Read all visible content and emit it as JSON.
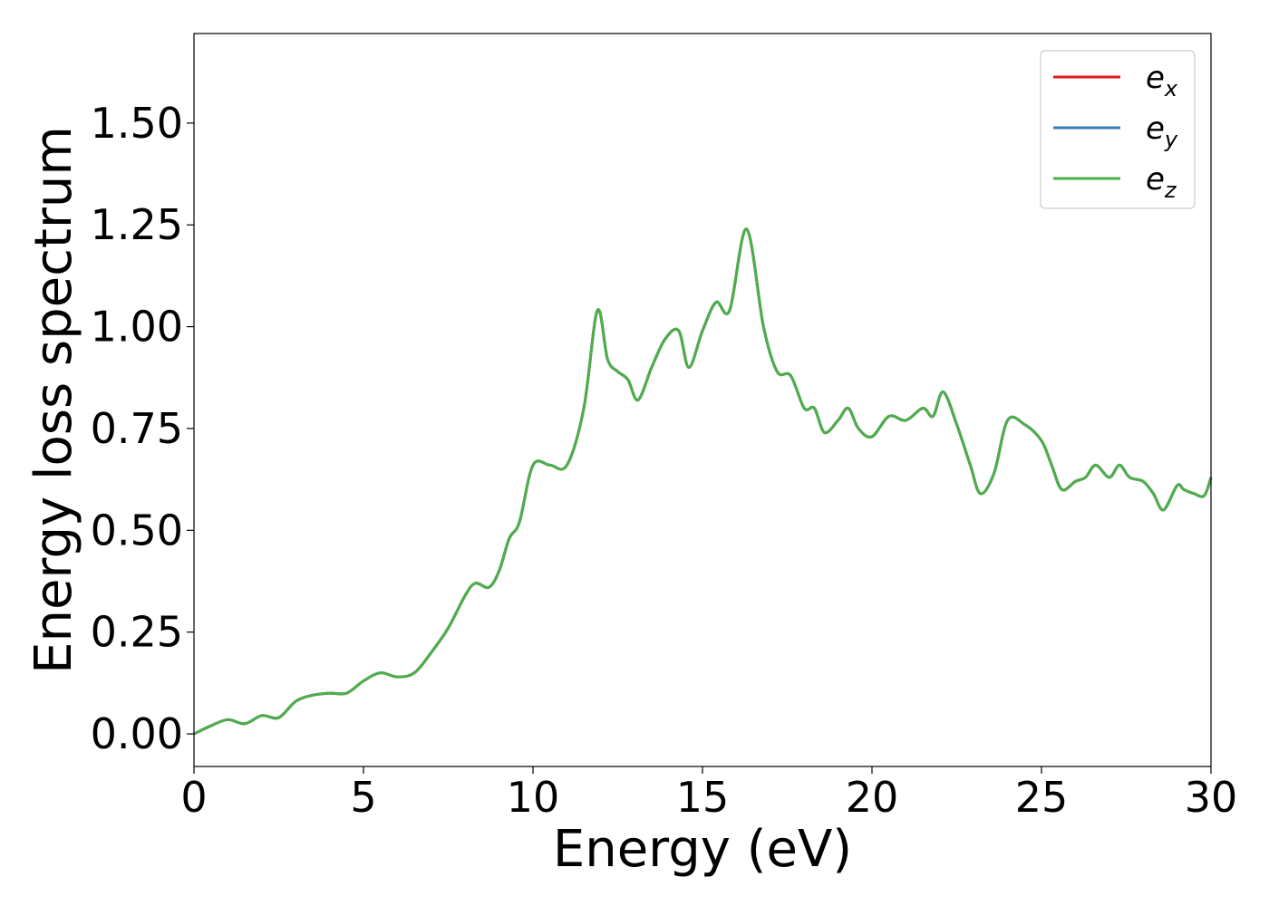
{
  "chart_data": {
    "type": "line",
    "title": "",
    "xlabel": "Energy (eV)",
    "ylabel": "Energy loss spectrum",
    "xlim": [
      0,
      30
    ],
    "ylim": [
      -0.08,
      1.72
    ],
    "xticks": [
      0,
      5,
      10,
      15,
      20,
      25,
      30
    ],
    "xtick_labels": [
      "0",
      "5",
      "10",
      "15",
      "20",
      "25",
      "30"
    ],
    "yticks": [
      0.0,
      0.25,
      0.5,
      0.75,
      1.0,
      1.25,
      1.5
    ],
    "ytick_labels": [
      "0.00",
      "0.25",
      "0.50",
      "0.75",
      "1.00",
      "1.25",
      "1.50"
    ],
    "grid": false,
    "legend_position": "top-right",
    "x": [
      0,
      0.5,
      1.0,
      1.5,
      2.0,
      2.5,
      3.0,
      3.5,
      4.0,
      4.5,
      5.0,
      5.5,
      6.0,
      6.5,
      7.0,
      7.5,
      8.0,
      8.3,
      8.7,
      9.0,
      9.3,
      9.6,
      10.0,
      10.5,
      11.0,
      11.5,
      11.9,
      12.2,
      12.5,
      12.8,
      13.1,
      13.5,
      13.9,
      14.3,
      14.6,
      15.0,
      15.4,
      15.8,
      16.3,
      16.8,
      17.2,
      17.6,
      18.0,
      18.3,
      18.6,
      19.0,
      19.3,
      19.6,
      20.0,
      20.5,
      21.0,
      21.5,
      21.8,
      22.1,
      22.5,
      22.9,
      23.2,
      23.6,
      24.0,
      24.5,
      25.0,
      25.3,
      25.6,
      26.0,
      26.3,
      26.6,
      27.0,
      27.3,
      27.6,
      28.0,
      28.3,
      28.6,
      29.0,
      29.2,
      29.5,
      29.8,
      30.0
    ],
    "series": [
      {
        "name": "e_x",
        "name_base": "e",
        "name_sub": "x",
        "color": "#e41a1c",
        "values": [
          0.0,
          0.02,
          0.035,
          0.025,
          0.045,
          0.04,
          0.08,
          0.095,
          0.1,
          0.1,
          0.13,
          0.15,
          0.14,
          0.15,
          0.2,
          0.26,
          0.34,
          0.37,
          0.36,
          0.4,
          0.48,
          0.52,
          0.66,
          0.66,
          0.66,
          0.8,
          1.04,
          0.92,
          0.89,
          0.87,
          0.82,
          0.9,
          0.97,
          0.99,
          0.9,
          0.99,
          1.06,
          1.04,
          1.24,
          1.0,
          0.89,
          0.88,
          0.8,
          0.8,
          0.74,
          0.77,
          0.8,
          0.75,
          0.73,
          0.78,
          0.77,
          0.8,
          0.78,
          0.84,
          0.76,
          0.66,
          0.59,
          0.64,
          0.77,
          0.76,
          0.72,
          0.66,
          0.6,
          0.62,
          0.63,
          0.66,
          0.63,
          0.66,
          0.63,
          0.62,
          0.59,
          0.55,
          0.61,
          0.6,
          0.59,
          0.585,
          0.63
        ]
      },
      {
        "name": "e_y",
        "name_base": "e",
        "name_sub": "y",
        "color": "#377eb8",
        "values": [
          0.0,
          0.02,
          0.035,
          0.025,
          0.045,
          0.04,
          0.08,
          0.095,
          0.1,
          0.1,
          0.13,
          0.15,
          0.14,
          0.15,
          0.2,
          0.26,
          0.34,
          0.37,
          0.36,
          0.4,
          0.48,
          0.52,
          0.66,
          0.66,
          0.66,
          0.8,
          1.04,
          0.92,
          0.89,
          0.87,
          0.82,
          0.9,
          0.97,
          0.99,
          0.9,
          0.99,
          1.06,
          1.04,
          1.24,
          1.0,
          0.89,
          0.88,
          0.8,
          0.8,
          0.74,
          0.77,
          0.8,
          0.75,
          0.73,
          0.78,
          0.77,
          0.8,
          0.78,
          0.84,
          0.76,
          0.66,
          0.59,
          0.64,
          0.77,
          0.76,
          0.72,
          0.66,
          0.6,
          0.62,
          0.63,
          0.66,
          0.63,
          0.66,
          0.63,
          0.62,
          0.59,
          0.55,
          0.61,
          0.6,
          0.59,
          0.585,
          0.63
        ]
      },
      {
        "name": "e_z",
        "name_base": "e",
        "name_sub": "z",
        "color": "#4daf4a",
        "values": [
          0.0,
          0.02,
          0.035,
          0.025,
          0.045,
          0.04,
          0.08,
          0.095,
          0.1,
          0.1,
          0.13,
          0.15,
          0.14,
          0.15,
          0.2,
          0.26,
          0.34,
          0.37,
          0.36,
          0.4,
          0.48,
          0.52,
          0.66,
          0.66,
          0.66,
          0.8,
          1.04,
          0.92,
          0.89,
          0.87,
          0.82,
          0.9,
          0.97,
          0.99,
          0.9,
          0.99,
          1.06,
          1.04,
          1.24,
          1.0,
          0.89,
          0.88,
          0.8,
          0.8,
          0.74,
          0.77,
          0.8,
          0.75,
          0.73,
          0.78,
          0.77,
          0.8,
          0.78,
          0.84,
          0.76,
          0.66,
          0.59,
          0.64,
          0.77,
          0.76,
          0.72,
          0.66,
          0.6,
          0.62,
          0.63,
          0.66,
          0.63,
          0.66,
          0.63,
          0.62,
          0.59,
          0.55,
          0.61,
          0.6,
          0.59,
          0.585,
          0.63
        ]
      }
    ]
  }
}
